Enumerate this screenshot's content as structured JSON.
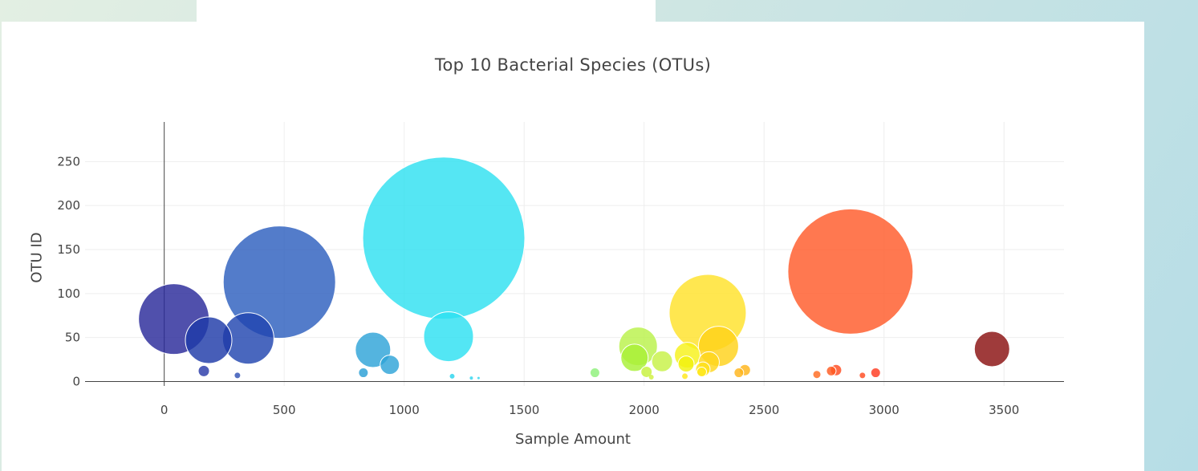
{
  "chart_data": {
    "type": "scatter",
    "title": "Top 10 Bacterial Species (OTUs)",
    "xlabel": "Sample Amount",
    "ylabel": "OTU ID",
    "xlim": [
      -330,
      3750
    ],
    "ylim": [
      -5,
      295
    ],
    "xticks": [
      0,
      500,
      1000,
      1500,
      2000,
      2500,
      3000,
      3500
    ],
    "yticks": [
      0,
      50,
      100,
      150,
      200,
      250
    ],
    "grid": true,
    "colorscale": "Jet",
    "points": [
      {
        "x": 40,
        "y": 71,
        "r": 44,
        "color": "#2a2a9a"
      },
      {
        "x": 185,
        "y": 47,
        "r": 29,
        "color": "#1f3aa8"
      },
      {
        "x": 350,
        "y": 49,
        "r": 32,
        "color": "#2146b0"
      },
      {
        "x": 480,
        "y": 113,
        "r": 70,
        "color": "#2d5fbe"
      },
      {
        "x": 165,
        "y": 12,
        "r": 7,
        "color": "#2a3aa8"
      },
      {
        "x": 305,
        "y": 7,
        "r": 4,
        "color": "#3050b5"
      },
      {
        "x": 870,
        "y": 36,
        "r": 22,
        "color": "#2ea3d8"
      },
      {
        "x": 940,
        "y": 19,
        "r": 12,
        "color": "#2ea3d8"
      },
      {
        "x": 830,
        "y": 10,
        "r": 6,
        "color": "#2a9fd5"
      },
      {
        "x": 1165,
        "y": 163,
        "r": 101,
        "color": "#2fe0f0"
      },
      {
        "x": 1185,
        "y": 51,
        "r": 31,
        "color": "#2de0f2"
      },
      {
        "x": 1200,
        "y": 6,
        "r": 3,
        "color": "#2ad4ee"
      },
      {
        "x": 1280,
        "y": 4,
        "r": 2,
        "color": "#30d6ef"
      },
      {
        "x": 1310,
        "y": 4,
        "r": 1.5,
        "color": "#30d6ef"
      },
      {
        "x": 1795,
        "y": 10,
        "r": 6,
        "color": "#8df07a"
      },
      {
        "x": 1975,
        "y": 40,
        "r": 24,
        "color": "#b9f24a"
      },
      {
        "x": 1960,
        "y": 27,
        "r": 17,
        "color": "#a8f036"
      },
      {
        "x": 2075,
        "y": 23,
        "r": 13,
        "color": "#c7f245"
      },
      {
        "x": 2010,
        "y": 11,
        "r": 7,
        "color": "#c7f23a"
      },
      {
        "x": 2030,
        "y": 5,
        "r": 3,
        "color": "#d0f040"
      },
      {
        "x": 2265,
        "y": 78,
        "r": 48,
        "color": "#ffe22a"
      },
      {
        "x": 2310,
        "y": 40,
        "r": 25,
        "color": "#ffd21a"
      },
      {
        "x": 2180,
        "y": 30,
        "r": 16,
        "color": "#f6f21a"
      },
      {
        "x": 2270,
        "y": 22,
        "r": 13,
        "color": "#ffd51c"
      },
      {
        "x": 2175,
        "y": 20,
        "r": 10,
        "color": "#f2f20e"
      },
      {
        "x": 2245,
        "y": 14,
        "r": 9,
        "color": "#ffe21a"
      },
      {
        "x": 2240,
        "y": 11,
        "r": 6,
        "color": "#ffe81a"
      },
      {
        "x": 2170,
        "y": 6,
        "r": 4,
        "color": "#ffe81a"
      },
      {
        "x": 2395,
        "y": 10,
        "r": 6,
        "color": "#ffb41a"
      },
      {
        "x": 2420,
        "y": 13,
        "r": 7,
        "color": "#ffb41a"
      },
      {
        "x": 2860,
        "y": 125,
        "r": 78,
        "color": "#ff5a2a"
      },
      {
        "x": 2800,
        "y": 13,
        "r": 7,
        "color": "#ff4a20"
      },
      {
        "x": 2780,
        "y": 12,
        "r": 6,
        "color": "#ff5a20"
      },
      {
        "x": 2720,
        "y": 8,
        "r": 5,
        "color": "#ff6a20"
      },
      {
        "x": 2910,
        "y": 7,
        "r": 4,
        "color": "#ff4a20"
      },
      {
        "x": 2965,
        "y": 10,
        "r": 6,
        "color": "#ff3a20"
      },
      {
        "x": 3450,
        "y": 37,
        "r": 22,
        "color": "#8a1010"
      }
    ]
  }
}
